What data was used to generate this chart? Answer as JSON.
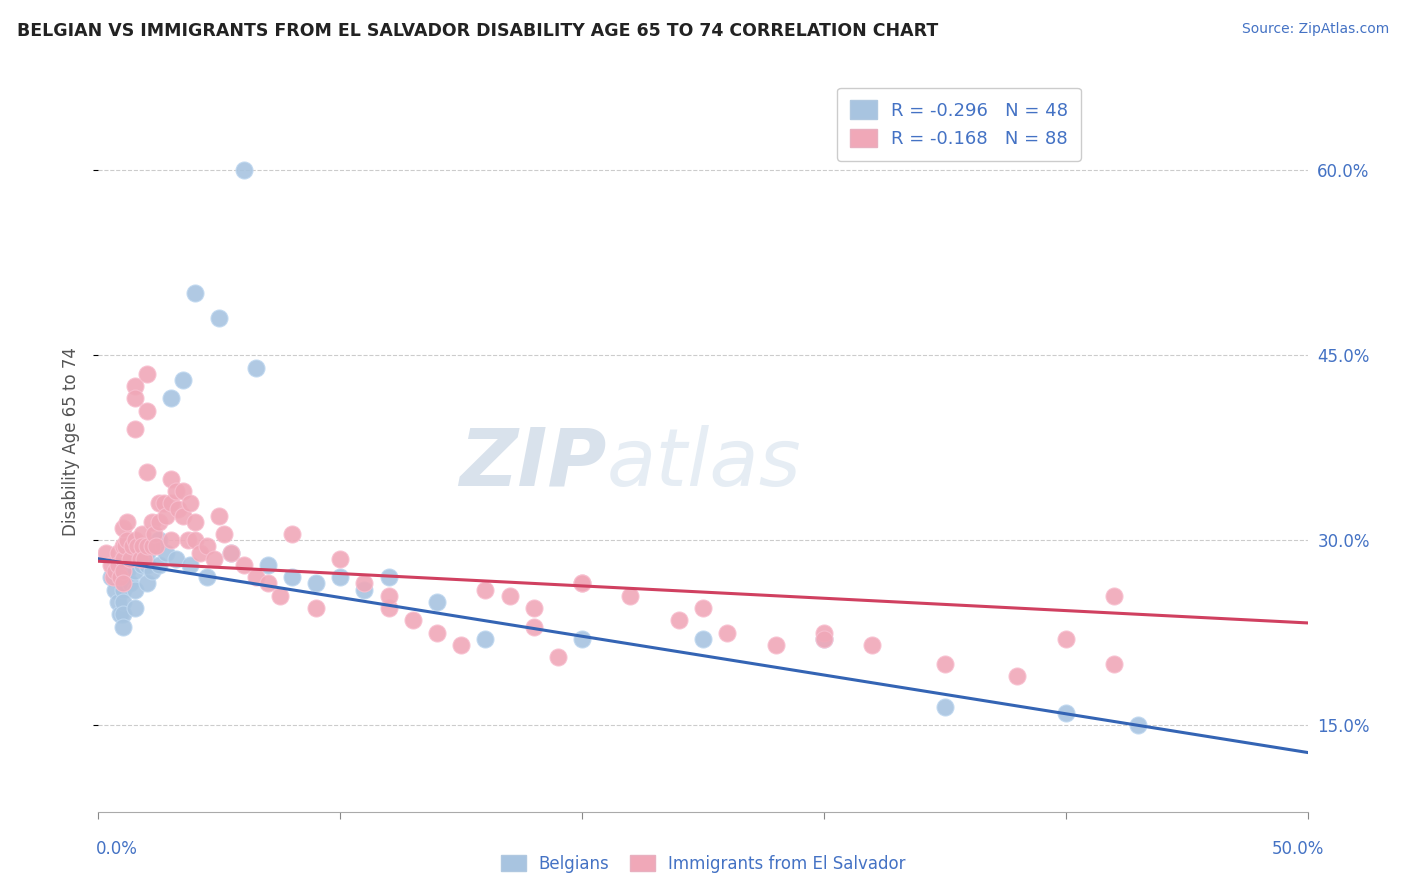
{
  "title": "BELGIAN VS IMMIGRANTS FROM EL SALVADOR DISABILITY AGE 65 TO 74 CORRELATION CHART",
  "source": "Source: ZipAtlas.com",
  "ylabel": "Disability Age 65 to 74",
  "ylabel_ticks": [
    "15.0%",
    "30.0%",
    "45.0%",
    "60.0%"
  ],
  "ylabel_tick_vals": [
    0.15,
    0.3,
    0.45,
    0.6
  ],
  "xlim": [
    0.0,
    0.5
  ],
  "ylim": [
    0.08,
    0.68
  ],
  "belgian_R": -0.296,
  "belgian_N": 48,
  "salvador_R": -0.168,
  "salvador_N": 88,
  "belgian_color": "#a8c4e0",
  "belgian_line_color": "#3464b4",
  "salvador_color": "#f0a8b8",
  "salvador_line_color": "#d04060",
  "watermark_zip": "ZIP",
  "watermark_atlas": "atlas",
  "bel_line_x0": 0.0,
  "bel_line_y0": 0.285,
  "bel_line_x1": 0.5,
  "bel_line_y1": 0.128,
  "sal_line_x0": 0.0,
  "sal_line_y0": 0.283,
  "sal_line_x1": 0.5,
  "sal_line_y1": 0.233,
  "belgian_x": [
    0.005,
    0.007,
    0.008,
    0.009,
    0.01,
    0.01,
    0.01,
    0.01,
    0.01,
    0.01,
    0.012,
    0.013,
    0.015,
    0.015,
    0.015,
    0.015,
    0.018,
    0.02,
    0.02,
    0.02,
    0.022,
    0.025,
    0.025,
    0.028,
    0.03,
    0.032,
    0.035,
    0.038,
    0.04,
    0.045,
    0.05,
    0.055,
    0.06,
    0.065,
    0.07,
    0.08,
    0.09,
    0.1,
    0.11,
    0.12,
    0.14,
    0.16,
    0.2,
    0.25,
    0.3,
    0.35,
    0.4,
    0.43
  ],
  "belgian_y": [
    0.27,
    0.26,
    0.25,
    0.24,
    0.28,
    0.27,
    0.26,
    0.25,
    0.24,
    0.23,
    0.275,
    0.265,
    0.285,
    0.275,
    0.26,
    0.245,
    0.28,
    0.29,
    0.28,
    0.265,
    0.275,
    0.3,
    0.28,
    0.29,
    0.415,
    0.285,
    0.43,
    0.28,
    0.5,
    0.27,
    0.48,
    0.29,
    0.6,
    0.44,
    0.28,
    0.27,
    0.265,
    0.27,
    0.26,
    0.27,
    0.25,
    0.22,
    0.22,
    0.22,
    0.22,
    0.165,
    0.16,
    0.15
  ],
  "salvador_x": [
    0.003,
    0.005,
    0.006,
    0.007,
    0.008,
    0.008,
    0.009,
    0.01,
    0.01,
    0.01,
    0.01,
    0.01,
    0.011,
    0.012,
    0.012,
    0.013,
    0.014,
    0.015,
    0.015,
    0.015,
    0.015,
    0.016,
    0.017,
    0.018,
    0.018,
    0.019,
    0.02,
    0.02,
    0.02,
    0.02,
    0.022,
    0.022,
    0.023,
    0.024,
    0.025,
    0.025,
    0.027,
    0.028,
    0.03,
    0.03,
    0.03,
    0.032,
    0.033,
    0.035,
    0.035,
    0.037,
    0.038,
    0.04,
    0.04,
    0.042,
    0.045,
    0.048,
    0.05,
    0.052,
    0.055,
    0.06,
    0.065,
    0.07,
    0.075,
    0.08,
    0.09,
    0.1,
    0.11,
    0.12,
    0.13,
    0.14,
    0.15,
    0.17,
    0.18,
    0.19,
    0.2,
    0.22,
    0.24,
    0.26,
    0.28,
    0.3,
    0.32,
    0.35,
    0.38,
    0.4,
    0.42,
    0.25,
    0.18,
    0.12,
    0.2,
    0.16,
    0.3,
    0.42
  ],
  "salvador_y": [
    0.29,
    0.28,
    0.27,
    0.275,
    0.29,
    0.28,
    0.27,
    0.31,
    0.295,
    0.285,
    0.275,
    0.265,
    0.295,
    0.315,
    0.3,
    0.285,
    0.295,
    0.425,
    0.415,
    0.39,
    0.3,
    0.295,
    0.285,
    0.305,
    0.295,
    0.285,
    0.435,
    0.405,
    0.355,
    0.295,
    0.315,
    0.295,
    0.305,
    0.295,
    0.33,
    0.315,
    0.33,
    0.32,
    0.35,
    0.33,
    0.3,
    0.34,
    0.325,
    0.34,
    0.32,
    0.3,
    0.33,
    0.315,
    0.3,
    0.29,
    0.295,
    0.285,
    0.32,
    0.305,
    0.29,
    0.28,
    0.27,
    0.265,
    0.255,
    0.305,
    0.245,
    0.285,
    0.265,
    0.245,
    0.235,
    0.225,
    0.215,
    0.255,
    0.245,
    0.205,
    0.265,
    0.255,
    0.235,
    0.225,
    0.215,
    0.225,
    0.215,
    0.2,
    0.19,
    0.22,
    0.2,
    0.245,
    0.23,
    0.255,
    0.265,
    0.26,
    0.22,
    0.255
  ]
}
